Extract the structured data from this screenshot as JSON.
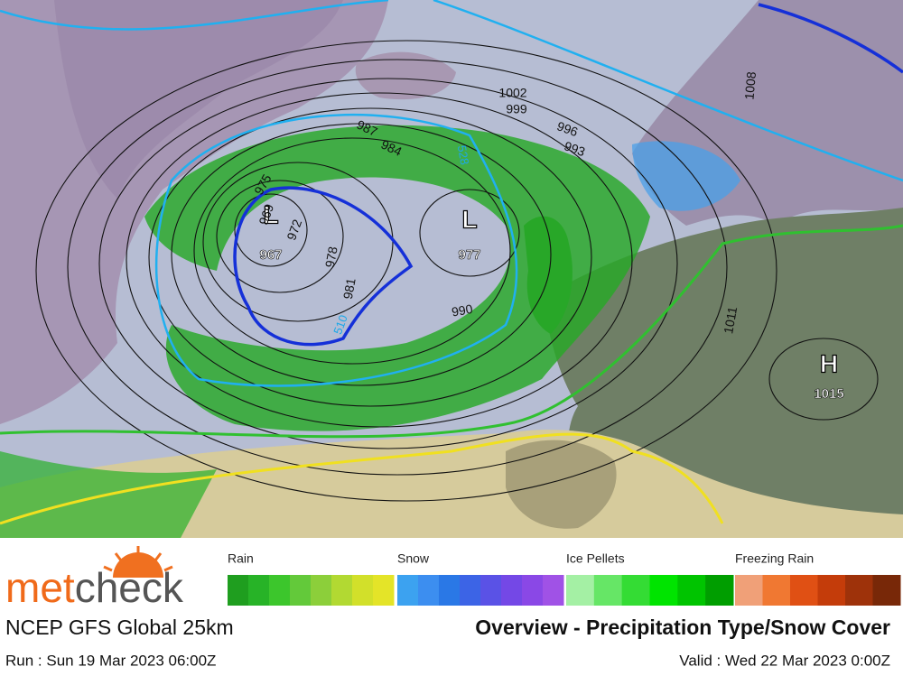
{
  "logo": {
    "part1": "met",
    "part2": "check"
  },
  "model": "NCEP GFS Global 25km",
  "title": "Overview - Precipitation Type/Snow Cover",
  "run": "Run : Sun 19 Mar 2023 06:00Z",
  "valid": "Valid : Wed 22 Mar 2023 0:00Z",
  "legend": [
    {
      "label": "Rain",
      "colors": [
        "#1f9e1f",
        "#27b327",
        "#3cc62c",
        "#63c93a",
        "#8ccf3a",
        "#b2d932",
        "#d2e02a",
        "#e4e428"
      ]
    },
    {
      "label": "Snow",
      "colors": [
        "#3ca2f0",
        "#3c8ef0",
        "#2a78e6",
        "#3c64e6",
        "#5a52e6",
        "#7448e6",
        "#8a48e6",
        "#a052e6"
      ]
    },
    {
      "label": "Ice Pellets",
      "colors": [
        "#a4f0a4",
        "#66e666",
        "#34dc34",
        "#00e400",
        "#00c400",
        "#009e00"
      ]
    },
    {
      "label": "Freezing Rain",
      "colors": [
        "#f0a078",
        "#f07832",
        "#e05014",
        "#c43c0a",
        "#9e320a",
        "#782808"
      ]
    }
  ],
  "pressure_centers": [
    {
      "symbol": "L",
      "value": "967"
    },
    {
      "symbol": "L",
      "value": "977"
    },
    {
      "symbol": "H",
      "value": "1015"
    }
  ],
  "isobar_labels": [
    "1002",
    "999",
    "996",
    "993",
    "987",
    "984",
    "975",
    "969",
    "972",
    "978",
    "981",
    "990",
    "1008",
    "1011"
  ],
  "thickness_labels": [
    "528",
    "510"
  ]
}
